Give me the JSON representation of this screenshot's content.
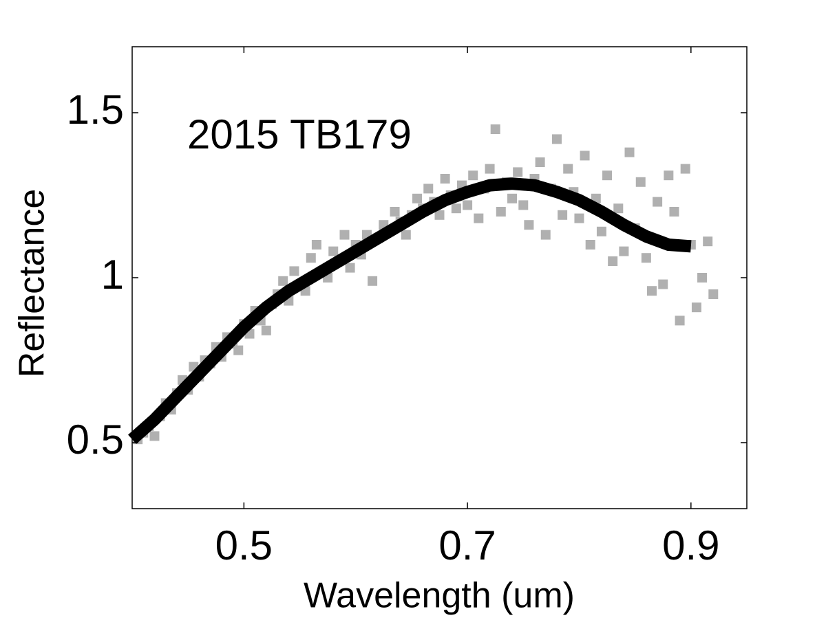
{
  "chart_data": {
    "type": "scatter",
    "annotation": "2015 TB179",
    "xlabel": "Wavelength (um)",
    "ylabel": "Reflectance",
    "xlim": [
      0.4,
      0.95
    ],
    "ylim": [
      0.3,
      1.7
    ],
    "xticks": [
      0.5,
      0.7,
      0.9
    ],
    "yticks": [
      0.5,
      1,
      1.5
    ],
    "series": [
      {
        "type": "scatter",
        "color": "#b0b0b0",
        "x": [
          0.405,
          0.41,
          0.415,
          0.42,
          0.425,
          0.43,
          0.435,
          0.44,
          0.445,
          0.45,
          0.455,
          0.46,
          0.465,
          0.47,
          0.475,
          0.48,
          0.485,
          0.49,
          0.495,
          0.5,
          0.505,
          0.51,
          0.515,
          0.52,
          0.525,
          0.53,
          0.535,
          0.54,
          0.545,
          0.55,
          0.555,
          0.56,
          0.565,
          0.57,
          0.575,
          0.58,
          0.585,
          0.59,
          0.595,
          0.6,
          0.605,
          0.61,
          0.615,
          0.62,
          0.625,
          0.63,
          0.635,
          0.64,
          0.645,
          0.65,
          0.655,
          0.66,
          0.665,
          0.67,
          0.675,
          0.68,
          0.685,
          0.69,
          0.695,
          0.7,
          0.705,
          0.71,
          0.715,
          0.72,
          0.725,
          0.73,
          0.735,
          0.74,
          0.745,
          0.75,
          0.755,
          0.76,
          0.765,
          0.77,
          0.775,
          0.78,
          0.785,
          0.79,
          0.795,
          0.8,
          0.805,
          0.81,
          0.815,
          0.82,
          0.825,
          0.83,
          0.835,
          0.84,
          0.845,
          0.85,
          0.855,
          0.86,
          0.865,
          0.87,
          0.875,
          0.88,
          0.885,
          0.89,
          0.895,
          0.9,
          0.905,
          0.91,
          0.915,
          0.92
        ],
        "values": [
          0.51,
          0.53,
          0.55,
          0.52,
          0.58,
          0.62,
          0.6,
          0.65,
          0.69,
          0.66,
          0.73,
          0.7,
          0.75,
          0.74,
          0.79,
          0.76,
          0.82,
          0.8,
          0.78,
          0.86,
          0.83,
          0.9,
          0.87,
          0.84,
          0.92,
          0.95,
          0.99,
          0.93,
          1.02,
          0.98,
          0.96,
          1.06,
          1.1,
          1.02,
          1.0,
          1.08,
          1.05,
          1.13,
          1.03,
          1.1,
          1.07,
          1.13,
          0.99,
          1.12,
          1.16,
          1.14,
          1.2,
          1.17,
          1.13,
          1.19,
          1.24,
          1.21,
          1.27,
          1.23,
          1.19,
          1.3,
          1.25,
          1.21,
          1.28,
          1.22,
          1.31,
          1.18,
          1.27,
          1.33,
          1.45,
          1.2,
          1.29,
          1.24,
          1.32,
          1.22,
          1.16,
          1.3,
          1.35,
          1.13,
          1.27,
          1.42,
          1.19,
          1.33,
          1.26,
          1.18,
          1.37,
          1.1,
          1.24,
          1.14,
          1.31,
          1.05,
          1.21,
          1.08,
          1.38,
          1.15,
          1.29,
          1.06,
          0.96,
          1.23,
          0.98,
          1.31,
          1.2,
          0.87,
          1.33,
          1.1,
          0.91,
          1.0,
          1.11,
          0.95
        ]
      },
      {
        "type": "line",
        "color": "#000000",
        "x": [
          0.4,
          0.42,
          0.44,
          0.46,
          0.48,
          0.5,
          0.52,
          0.54,
          0.56,
          0.58,
          0.6,
          0.62,
          0.64,
          0.66,
          0.68,
          0.7,
          0.72,
          0.74,
          0.76,
          0.78,
          0.8,
          0.82,
          0.84,
          0.86,
          0.88,
          0.9
        ],
        "values": [
          0.51,
          0.57,
          0.64,
          0.71,
          0.78,
          0.85,
          0.91,
          0.96,
          1.0,
          1.04,
          1.08,
          1.12,
          1.16,
          1.2,
          1.235,
          1.26,
          1.28,
          1.285,
          1.28,
          1.26,
          1.235,
          1.2,
          1.16,
          1.125,
          1.1,
          1.095
        ]
      }
    ]
  }
}
